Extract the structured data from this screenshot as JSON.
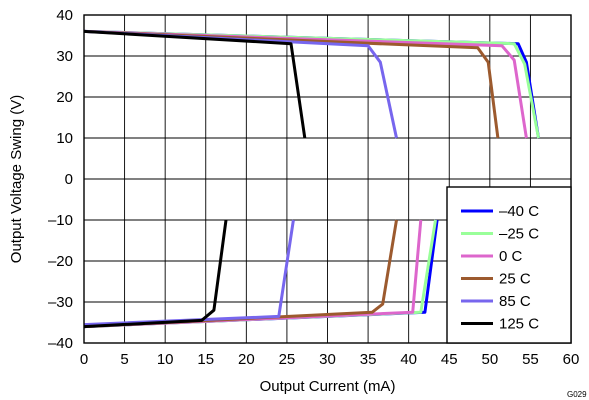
{
  "chart_data": {
    "type": "line",
    "xlabel": "Output Current (mA)",
    "ylabel": "Output Voltage Swing (V)",
    "xlim": [
      0,
      60
    ],
    "ylim": [
      -40,
      40
    ],
    "xticks": [
      0,
      5,
      10,
      15,
      20,
      25,
      30,
      35,
      40,
      45,
      50,
      55,
      60
    ],
    "yticks": [
      40,
      30,
      20,
      10,
      0,
      -10,
      -20,
      -30,
      -40
    ],
    "ytick_labels": [
      "40",
      "30",
      "20",
      "10",
      "0",
      "–10",
      "–20",
      "–30",
      "–40"
    ],
    "grid": true,
    "legend_position": "bottom-right",
    "figure_id": "G029",
    "series": [
      {
        "name": "–40 C",
        "color": "#0000ff",
        "positive": [
          [
            0,
            36
          ],
          [
            53.5,
            33
          ],
          [
            54.5,
            28.5
          ],
          [
            56,
            10
          ]
        ],
        "negative": [
          [
            0,
            -36
          ],
          [
            42,
            -32.5
          ],
          [
            43.5,
            -10
          ]
        ]
      },
      {
        "name": "–25 C",
        "color": "#99ff99",
        "positive": [
          [
            0,
            36
          ],
          [
            53,
            33
          ],
          [
            54.3,
            28
          ],
          [
            56,
            10
          ]
        ],
        "negative": [
          [
            0,
            -36
          ],
          [
            41.5,
            -32.5
          ],
          [
            43.3,
            -10
          ]
        ]
      },
      {
        "name": "0 C",
        "color": "#dd66cc",
        "positive": [
          [
            0,
            36
          ],
          [
            51.5,
            32.5
          ],
          [
            53,
            29
          ],
          [
            54.5,
            10
          ]
        ],
        "negative": [
          [
            0,
            -36
          ],
          [
            40.5,
            -32.5
          ],
          [
            41.5,
            -10
          ]
        ]
      },
      {
        "name": "25 C",
        "color": "#9c5a2e",
        "positive": [
          [
            0,
            36
          ],
          [
            48.5,
            32
          ],
          [
            49.8,
            28.5
          ],
          [
            51,
            10
          ]
        ],
        "negative": [
          [
            0,
            -36
          ],
          [
            35.5,
            -32.5
          ],
          [
            36.8,
            -30.5
          ],
          [
            38.5,
            -10
          ]
        ]
      },
      {
        "name": "85 C",
        "color": "#7766ee",
        "positive": [
          [
            0,
            36
          ],
          [
            35,
            32.5
          ],
          [
            36.5,
            28.5
          ],
          [
            38.5,
            10
          ]
        ],
        "negative": [
          [
            0,
            -35.5
          ],
          [
            24,
            -33.5
          ],
          [
            25.8,
            -10
          ]
        ]
      },
      {
        "name": "125 C",
        "color": "#000000",
        "positive": [
          [
            0,
            36
          ],
          [
            25.5,
            33
          ],
          [
            27.2,
            10
          ]
        ],
        "negative": [
          [
            0,
            -36
          ],
          [
            14.5,
            -34.5
          ],
          [
            16,
            -32
          ],
          [
            17.5,
            -10
          ]
        ]
      }
    ]
  }
}
